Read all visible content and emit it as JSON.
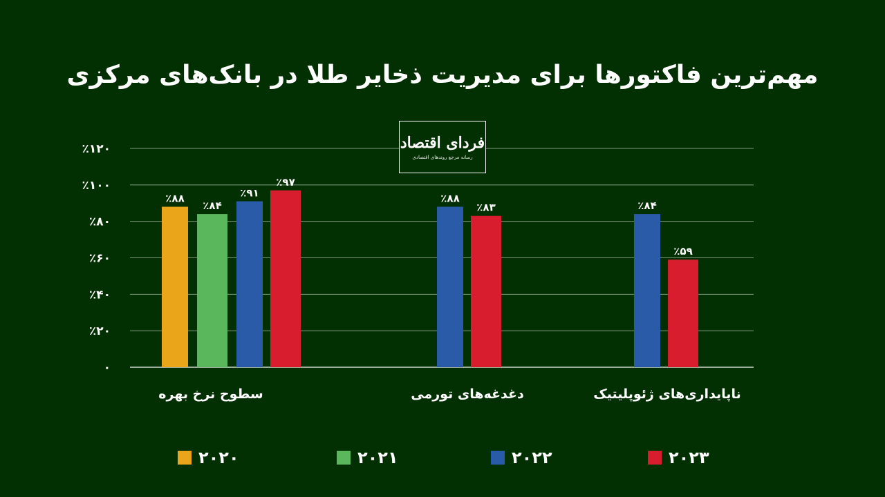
{
  "title": "مهم‌ترین فاکتورها برای مدیریت ذخایر طلا در بانک‌های مرکزی",
  "logo": {
    "name": "فردای اقتصاد",
    "tagline": "رسانه مرجع روندهای اقتصادی"
  },
  "chart_data": {
    "type": "bar",
    "categories": [
      "سطوح نرخ بهره",
      "دغدغه‌های تورمی",
      "ناپایداری‌های ژئوپلیتیک"
    ],
    "series": [
      {
        "name": "۲۰۲۰",
        "color": "#EAA51A",
        "values": [
          88,
          null,
          null
        ],
        "labels": [
          "٪۸۸",
          "",
          ""
        ]
      },
      {
        "name": "۲۰۲۱",
        "color": "#5BB75C",
        "values": [
          84,
          null,
          null
        ],
        "labels": [
          "٪۸۴",
          "",
          ""
        ]
      },
      {
        "name": "۲۰۲۲",
        "color": "#2A5BA8",
        "values": [
          91,
          88,
          84
        ],
        "labels": [
          "٪۹۱",
          "٪۸۸",
          "٪۸۴"
        ]
      },
      {
        "name": "۲۰۲۳",
        "color": "#D81E2E",
        "values": [
          97,
          83,
          59
        ],
        "labels": [
          "٪۹۷",
          "٪۸۳",
          "٪۵۹"
        ]
      }
    ],
    "ylim": [
      0,
      120
    ],
    "yticks": [
      0,
      20,
      40,
      60,
      80,
      100,
      120
    ],
    "ytick_labels": [
      "۰",
      "٪۲۰",
      "٪۴۰",
      "٪۶۰",
      "٪۸۰",
      "٪۱۰۰",
      "٪۱۲۰"
    ],
    "grid": true,
    "legend_position": "bottom"
  }
}
